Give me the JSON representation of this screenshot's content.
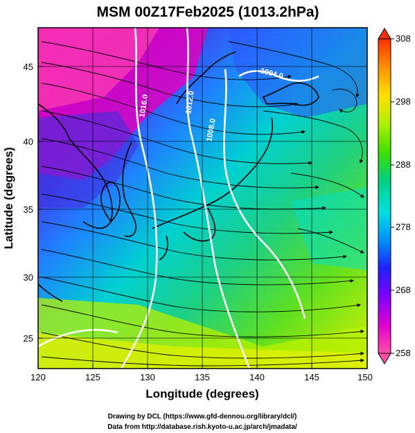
{
  "title": "MSM 00Z17Feb2025 (1013.2hPa)",
  "map": {
    "x_axis": {
      "label": "Longitude (degrees)",
      "range": [
        120,
        150
      ],
      "ticks": [
        "120",
        "125",
        "130",
        "135",
        "140",
        "145",
        "150"
      ]
    },
    "y_axis": {
      "label": "Latitude  (degrees)",
      "range": [
        22.5,
        47.5
      ],
      "ticks": [
        "25",
        "30",
        "35",
        "40",
        "45"
      ]
    },
    "grid": true,
    "isobar_labels": [
      "1016.0",
      "1012.0",
      "1008.0",
      "1004.0"
    ]
  },
  "colorbar": {
    "ticks": [
      "258",
      "268",
      "278",
      "288",
      "298",
      "308"
    ],
    "min": 258,
    "max": 308,
    "colors": [
      "#ff4fa8",
      "#e000d0",
      "#8000ff",
      "#2020ff",
      "#0090ff",
      "#00e0e0",
      "#00d080",
      "#40e000",
      "#b0f000",
      "#ffe000",
      "#ff9000",
      "#ff3000"
    ]
  },
  "credits": {
    "line1": "Drawing by DCL (https://www.gfd-dennou.org/library/dcl/)",
    "line2": "Data from http://database.rish.kyoto-u.ac.jp/arch/jmadata/"
  }
}
